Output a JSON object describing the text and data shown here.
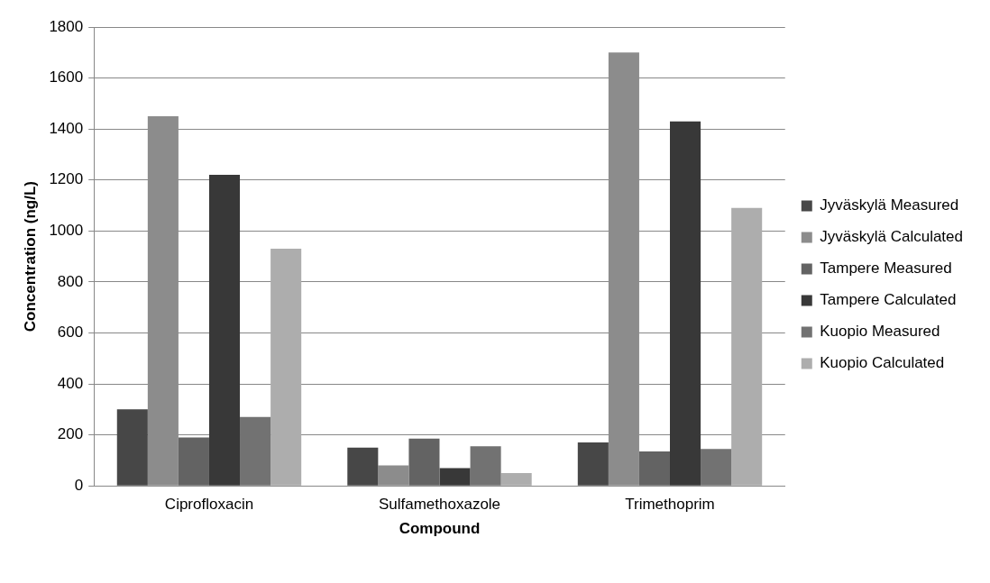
{
  "chart_data": {
    "type": "bar",
    "xlabel": "Compound",
    "ylabel": "Concentration (ng/L)",
    "categories": [
      "Ciprofloxacin",
      "Sulfamethoxazole",
      "Trimethoprim"
    ],
    "series": [
      {
        "name": "Jyväskylä Measured",
        "color": "#474747",
        "values": [
          300,
          150,
          170
        ]
      },
      {
        "name": "Jyväskylä Calculated",
        "color": "#8c8c8c",
        "values": [
          1450,
          80,
          1700
        ]
      },
      {
        "name": "Tampere Measured",
        "color": "#636363",
        "values": [
          190,
          185,
          135
        ]
      },
      {
        "name": "Tampere Calculated",
        "color": "#383838",
        "values": [
          1220,
          70,
          1430
        ]
      },
      {
        "name": "Kuopio Measured",
        "color": "#727272",
        "values": [
          270,
          155,
          145
        ]
      },
      {
        "name": "Kuopio Calculated",
        "color": "#adadad",
        "values": [
          930,
          50,
          1090
        ]
      }
    ],
    "ylim": [
      0,
      1800
    ],
    "yticks": [
      0,
      200,
      400,
      600,
      800,
      1000,
      1200,
      1400,
      1600,
      1800
    ],
    "grid": "y",
    "legend": "right"
  }
}
